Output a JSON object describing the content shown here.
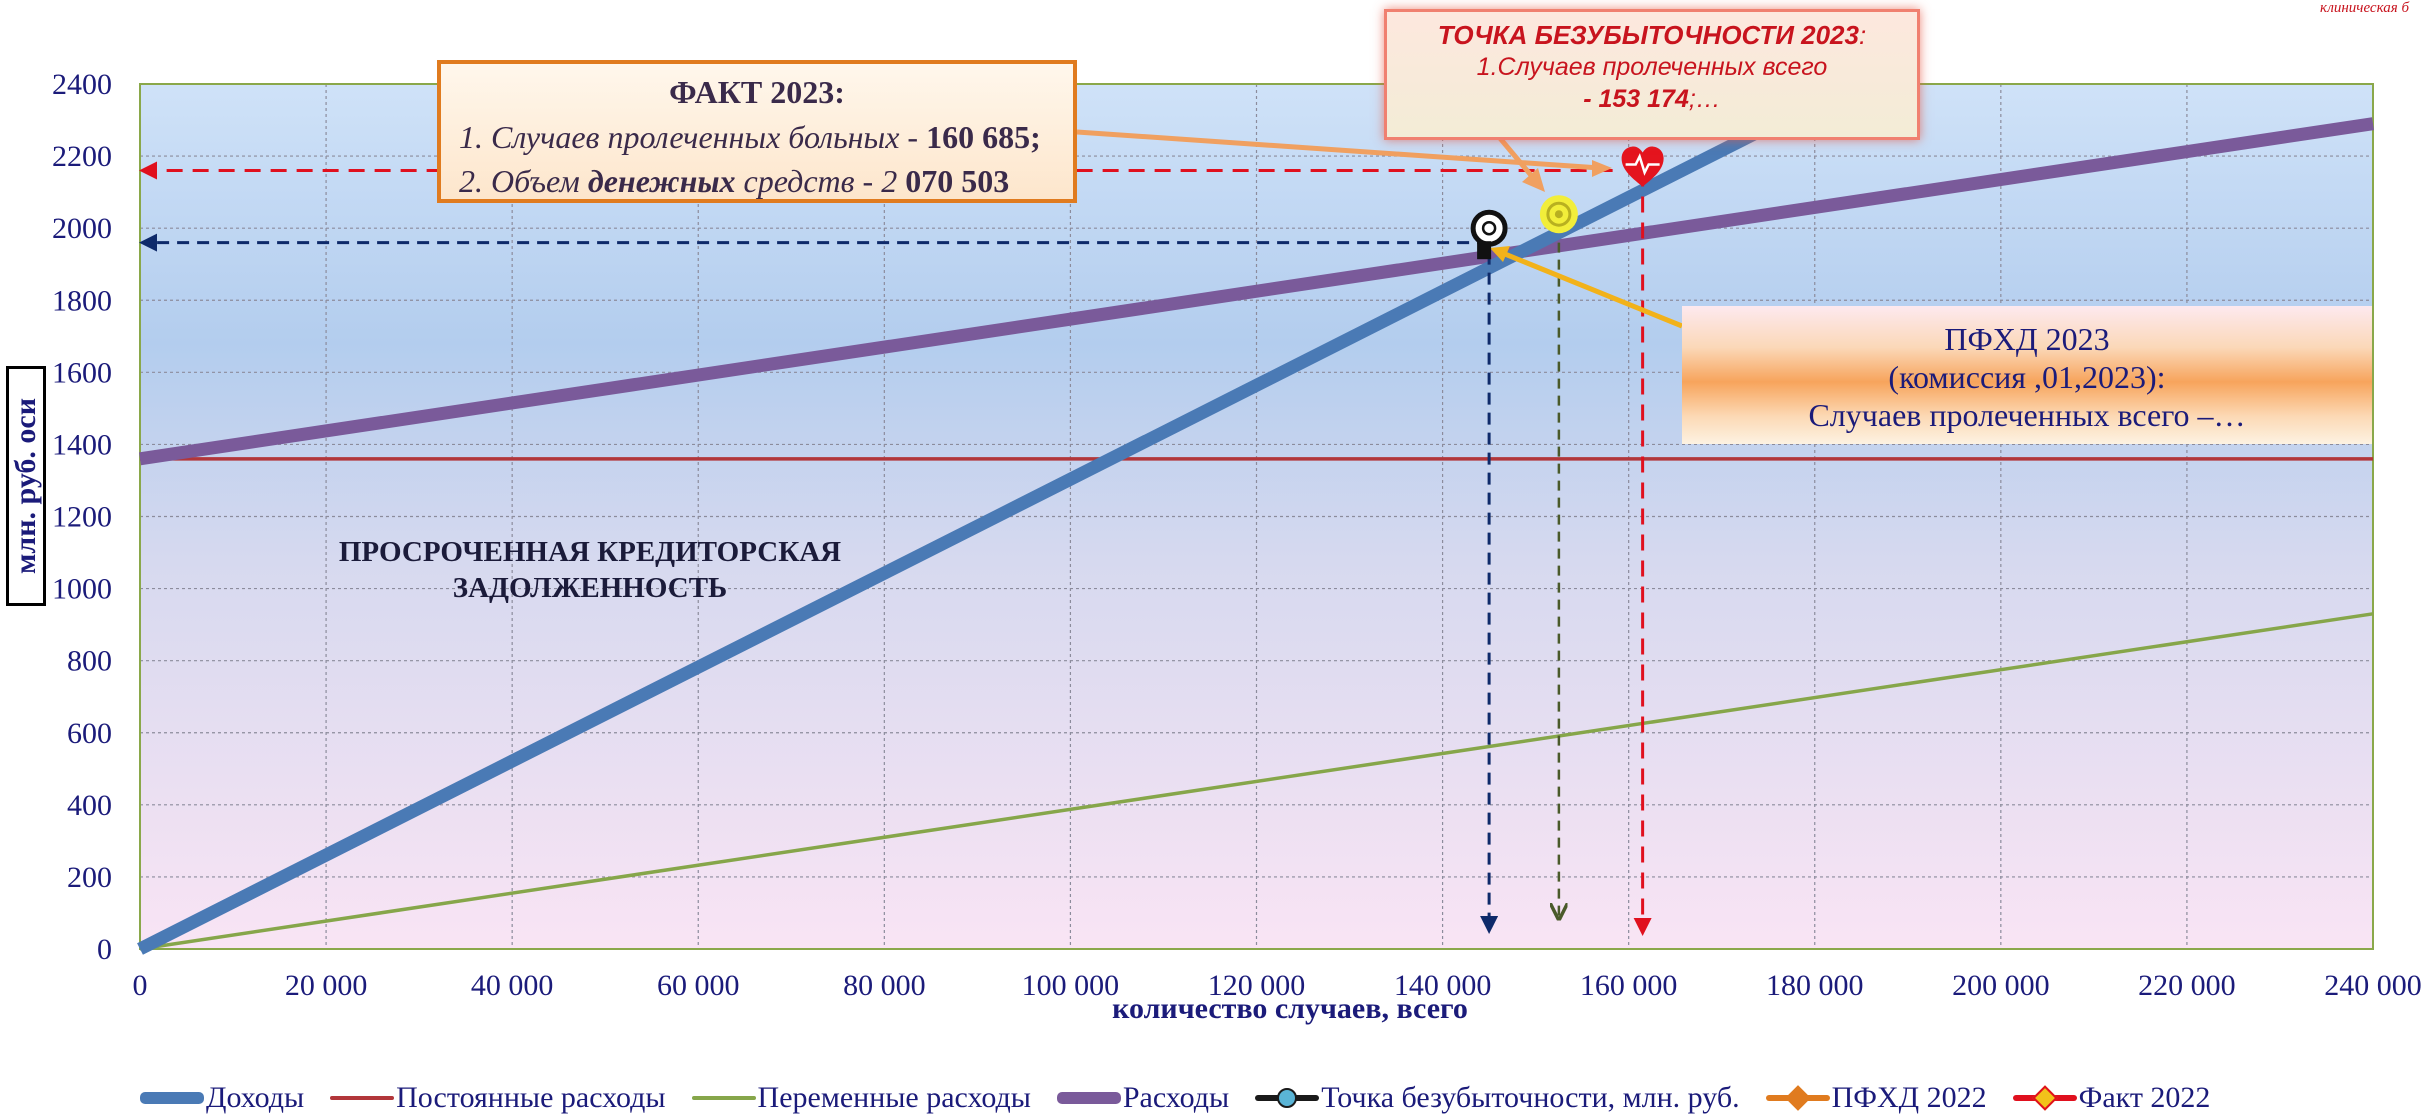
{
  "chart_data": {
    "type": "line",
    "xlabel": "количество случаев, всего",
    "ylabel": "млн. руб. оси",
    "xlim": [
      0,
      240000
    ],
    "ylim": [
      0,
      2400
    ],
    "x_ticks": [
      0,
      20000,
      40000,
      60000,
      80000,
      100000,
      120000,
      140000,
      160000,
      180000,
      200000,
      220000,
      240000
    ],
    "x_tick_labels": [
      "0",
      "20 000",
      "40 000",
      "60 000",
      "80 000",
      "100 000",
      "120 000",
      "140 000",
      "160 000",
      "180 000",
      "200 000",
      "220 000",
      "240 000"
    ],
    "y_ticks": [
      0,
      200,
      400,
      600,
      800,
      1000,
      1200,
      1400,
      1600,
      1800,
      2000,
      2200,
      2400
    ],
    "y_tick_labels": [
      "0",
      "200",
      "400",
      "600",
      "800",
      "1000",
      "1200",
      "1400",
      "1600",
      "1800",
      "2000",
      "2200",
      "2400"
    ],
    "grid": true,
    "legend_position": "bottom",
    "series": [
      {
        "name": "Доходы",
        "color": "#4a7ab5",
        "x": [
          0,
          178000
        ],
        "y": [
          0,
          2320
        ]
      },
      {
        "name": "Постоянные расходы",
        "color": "#b2363a",
        "x": [
          0,
          240000
        ],
        "y": [
          1360,
          1360
        ]
      },
      {
        "name": "Переменные расходы",
        "color": "#86a64a",
        "x": [
          0,
          240000
        ],
        "y": [
          0,
          930
        ]
      },
      {
        "name": "Расходы",
        "color": "#7a5a9a",
        "x": [
          0,
          240000
        ],
        "y": [
          1360,
          2290
        ]
      },
      {
        "name": "Точка безубыточности, млн. руб.",
        "color": "#1a1a1a",
        "marker_color": "#5ab4d6",
        "x": [
          145000
        ],
        "y": [
          1950
        ]
      },
      {
        "name": "ПФХД 2022",
        "color": "#e07b1f",
        "x": [
          152500
        ],
        "y": [
          1950
        ]
      },
      {
        "name": "Факт 2022",
        "color": "#e0101e",
        "x": [
          161500
        ],
        "y": [
          2160
        ]
      }
    ],
    "reference_lines": [
      {
        "series": "Точка безубыточности, млн. руб.",
        "color": "#0e2a6a",
        "x": 145000,
        "y": 1960
      },
      {
        "series": "ПФХД 2022",
        "color": "#4a5a2a",
        "x": 152500,
        "y": 1960
      },
      {
        "series": "Факт 2022",
        "color": "#e0101e",
        "x": 161500,
        "y": 2160
      }
    ]
  },
  "annotations": {
    "fact": {
      "title": "ФАКТ 2023:",
      "line1_prefix": "1. Случаев пролеченных больных - ",
      "line1_value": "160 685;",
      "line2_prefix": "2. Объем ",
      "line2_emph": "денежных",
      "line2_middle": " средств - 2 ",
      "line2_value": "070 503"
    },
    "breakeven": {
      "title": "ТОЧКА БЕЗУБЫТОЧНОСТИ 2023",
      "title_suffix": ":",
      "line1": "1.Случаев пролеченных всего",
      "line2_value": "- 153 174",
      "line2_suffix": ";…"
    },
    "pfhd": {
      "line1": "ПФХД 2023",
      "line2": "(комиссия ,01,2023):",
      "line3": "Случаев пролеченных всего –…"
    },
    "overdue": {
      "line1": "ПРОСРОЧЕННАЯ КРЕДИТОРСКАЯ",
      "line2": "ЗАДОЛЖЕННОСТЬ"
    },
    "watermark": "клиническая б"
  },
  "legend": [
    {
      "label": "Доходы",
      "color": "#4a7ab5",
      "style": "thick"
    },
    {
      "label": "Постоянные расходы",
      "color": "#b2363a",
      "style": "thin"
    },
    {
      "label": "Переменные расходы",
      "color": "#86a64a",
      "style": "thin"
    },
    {
      "label": "Расходы",
      "color": "#7a5a9a",
      "style": "thick"
    },
    {
      "label": "Точка безубыточности, млн. руб.",
      "color": "#1a1a1a",
      "marker_color": "#5ab4d6",
      "style": "marker-circle"
    },
    {
      "label": "ПФХД 2022",
      "color": "#e07b1f",
      "style": "marker-diamond"
    },
    {
      "label": "Факт 2022",
      "color": "#e0101e",
      "marker_color": "#f2c21a",
      "style": "marker-diamond"
    }
  ]
}
